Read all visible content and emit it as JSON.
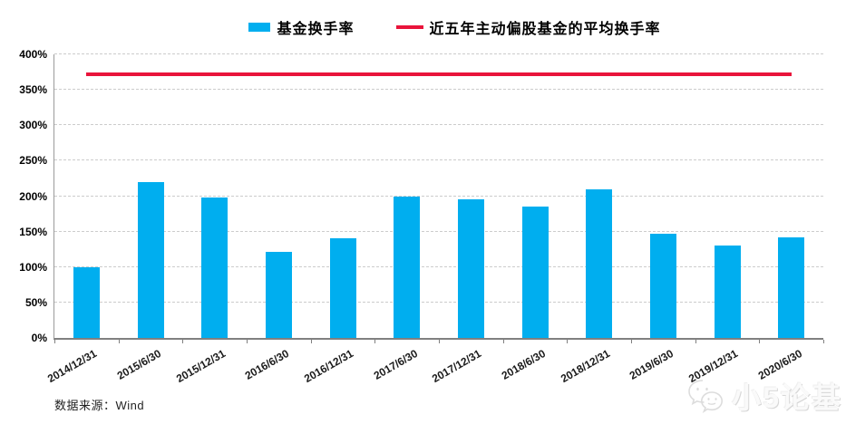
{
  "legend": {
    "items": [
      {
        "label": "基金换手率",
        "marker": "bar-swatch"
      },
      {
        "label": "近五年主动偏股基金的平均换手率",
        "marker": "line-swatch"
      }
    ]
  },
  "colors": {
    "bar": "#00AEEF",
    "line": "#E9143B",
    "grid": "#CCCCCC",
    "axis": "#808080",
    "text": "#000000"
  },
  "chart_data": {
    "type": "bar",
    "categories": [
      "2014/12/31",
      "2015/6/30",
      "2015/12/31",
      "2016/6/30",
      "2016/12/31",
      "2017/6/30",
      "2017/12/31",
      "2018/6/30",
      "2018/12/31",
      "2019/6/30",
      "2019/12/31",
      "2020/6/30"
    ],
    "series": [
      {
        "name": "基金换手率",
        "type": "bar",
        "color": "#00AEEF",
        "values": [
          100,
          220,
          198,
          121,
          140,
          200,
          195,
          185,
          209,
          147,
          131,
          142
        ]
      },
      {
        "name": "近五年主动偏股基金的平均换手率",
        "type": "line",
        "color": "#E9143B",
        "constant_value": 372
      }
    ],
    "title": "",
    "xlabel": "",
    "ylabel": "",
    "ylim": [
      0,
      400
    ],
    "ytick_step": 50,
    "ytick_labels": [
      "0%",
      "50%",
      "100%",
      "150%",
      "200%",
      "250%",
      "300%",
      "350%",
      "400%"
    ],
    "ytick_suffix": "%",
    "grid": true,
    "legend_position": "top-center"
  },
  "footer": {
    "source": "数据来源：Wind"
  },
  "watermark": {
    "text": "小5论基",
    "icon": "wechat-logo-icon"
  }
}
